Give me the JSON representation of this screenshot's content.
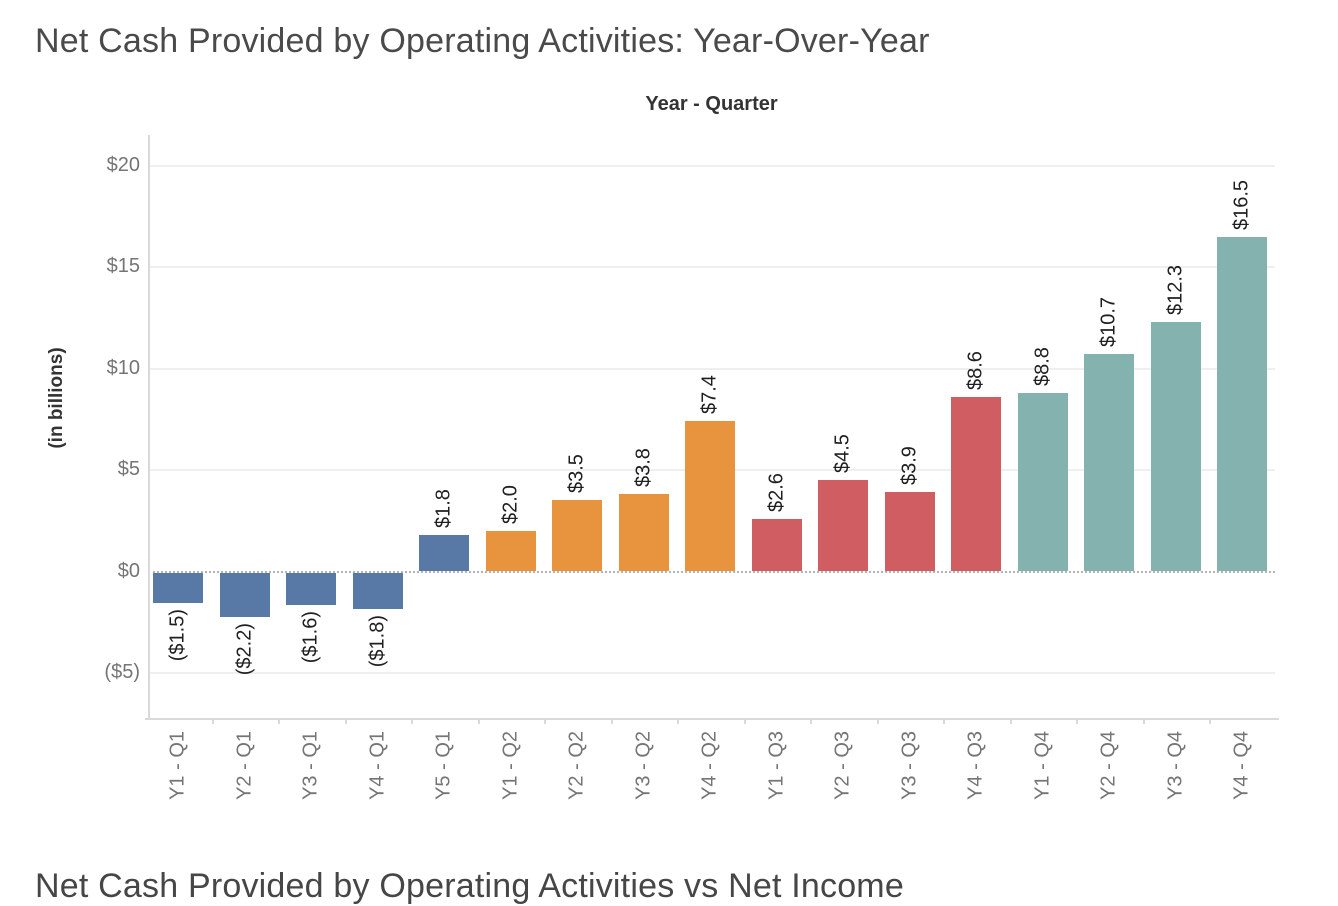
{
  "header": {
    "title": "Net Cash Provided by Operating Activities: Year-Over-Year"
  },
  "footer": {
    "next_chart_title_partial": "Net Cash Provided by Operating Activities vs Net Income"
  },
  "chart_data": {
    "type": "bar",
    "title": "Net Cash Provided by Operating Activities: Year-Over-Year",
    "x_axis_title": "Year - Quarter",
    "y_axis_title": "(in billions)",
    "categories": [
      "Y1 - Q1",
      "Y2 - Q1",
      "Y3 - Q1",
      "Y4 - Q1",
      "Y5 - Q1",
      "Y1 - Q2",
      "Y2 - Q2",
      "Y3 - Q2",
      "Y4 - Q2",
      "Y1 - Q3",
      "Y2 - Q3",
      "Y3 - Q3",
      "Y4 - Q3",
      "Y1 - Q4",
      "Y2 - Q4",
      "Y3 - Q4",
      "Y4 - Q4"
    ],
    "values": [
      -1.5,
      -2.2,
      -1.6,
      -1.8,
      1.8,
      2.0,
      3.5,
      3.8,
      7.4,
      2.6,
      4.5,
      3.9,
      8.6,
      8.8,
      10.7,
      12.3,
      16.5
    ],
    "bar_labels": [
      "($1.5)",
      "($2.2)",
      "($1.6)",
      "($1.8)",
      "$1.8",
      "$2.0",
      "$3.5",
      "$3.8",
      "$7.4",
      "$2.6",
      "$4.5",
      "$3.9",
      "$8.6",
      "$8.8",
      "$10.7",
      "$12.3",
      "$16.5"
    ],
    "groups": [
      "Q1",
      "Q1",
      "Q1",
      "Q1",
      "Q1",
      "Q2",
      "Q2",
      "Q2",
      "Q2",
      "Q3",
      "Q3",
      "Q3",
      "Q3",
      "Q4",
      "Q4",
      "Q4",
      "Q4"
    ],
    "group_colors": {
      "Q1": "#5878a5",
      "Q2": "#e8943e",
      "Q3": "#d05d62",
      "Q4": "#83b2af"
    },
    "y_ticks": [
      {
        "value": 20,
        "label": "$20"
      },
      {
        "value": 15,
        "label": "$15"
      },
      {
        "value": 10,
        "label": "$10"
      },
      {
        "value": 5,
        "label": "$5"
      },
      {
        "value": 0,
        "label": "$0"
      },
      {
        "value": -5,
        "label": "($5)"
      }
    ],
    "ylim": [
      -7.2,
      21.5
    ],
    "grid": "horizontal-light",
    "zero_line_style": "dotted",
    "legend": "none"
  }
}
